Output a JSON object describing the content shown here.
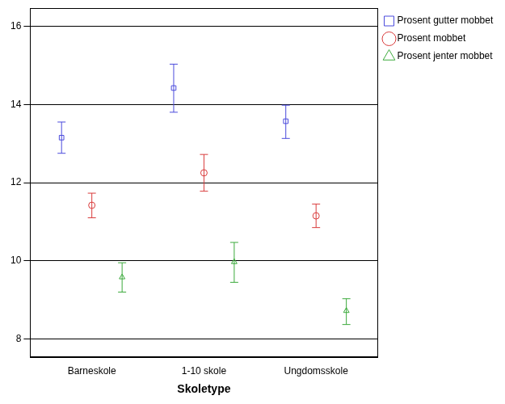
{
  "chart_data": {
    "type": "errorbar",
    "x_label": "Skoletype",
    "categories": [
      "Barneskole",
      "1-10 skole",
      "Ungdomsskole"
    ],
    "series": [
      {
        "name": "Prosent gutter mobbet",
        "color": "#4b4bdc",
        "marker": "square",
        "values": [
          13.15,
          14.42,
          13.57
        ],
        "lower": [
          12.75,
          13.8,
          13.13
        ],
        "upper": [
          13.55,
          15.03,
          13.98
        ]
      },
      {
        "name": "Prosent mobbet",
        "color": "#d93c3c",
        "marker": "circle",
        "values": [
          11.42,
          12.25,
          11.15
        ],
        "lower": [
          11.1,
          11.78,
          10.85
        ],
        "upper": [
          11.73,
          12.72,
          11.45
        ]
      },
      {
        "name": "Prosent jenter mobbet",
        "color": "#3caa3c",
        "marker": "triangle",
        "values": [
          9.58,
          9.97,
          8.72
        ],
        "lower": [
          9.2,
          9.45,
          8.37
        ],
        "upper": [
          9.95,
          10.47,
          9.03
        ]
      }
    ],
    "ylim": [
      7.54,
      16.46
    ],
    "yticks": [
      8,
      10,
      12,
      14,
      16
    ],
    "grid": true,
    "legend": "right"
  }
}
